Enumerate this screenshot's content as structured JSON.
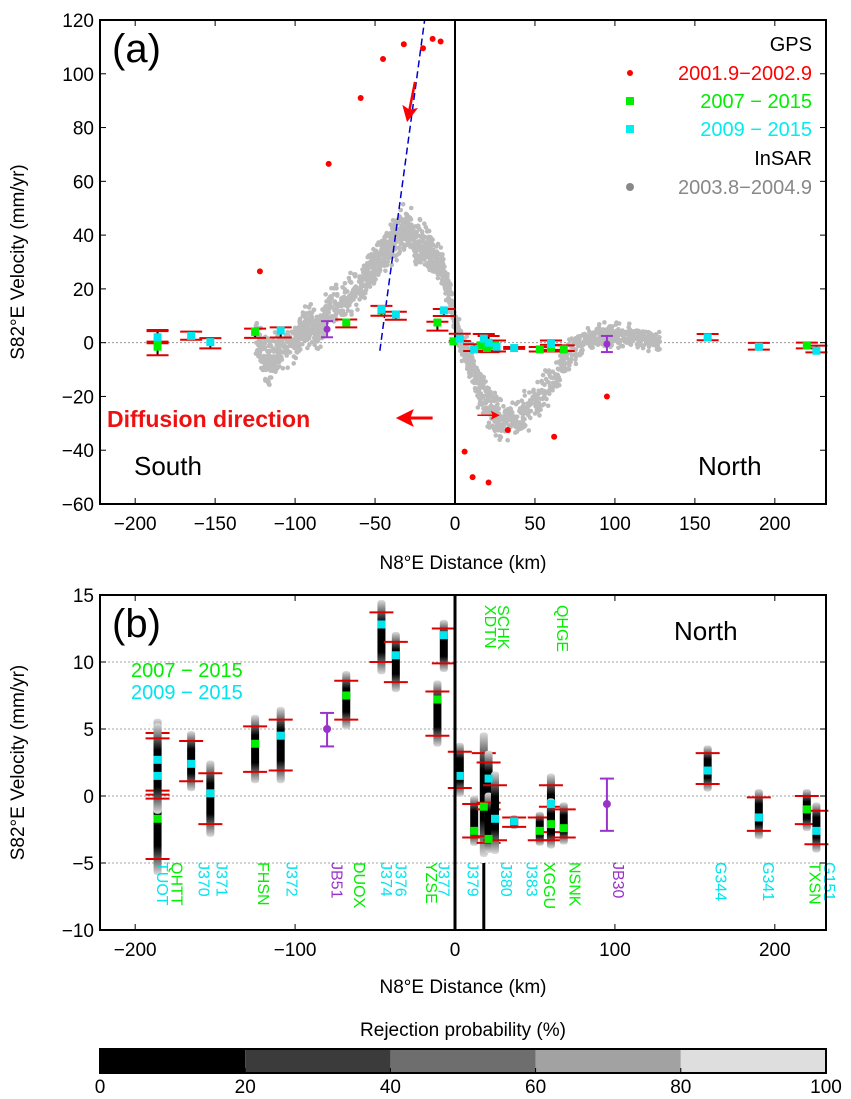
{
  "chart_data": [
    {
      "type": "scatter",
      "panel_label": "(a)",
      "xlabel": "N8°E Distance (km)",
      "ylabel": "S82°E Velocity (mm/yr)",
      "xlim": [
        -222,
        232
      ],
      "ylim": [
        -60,
        120
      ],
      "xticks": [
        -200,
        -150,
        -100,
        -50,
        0,
        50,
        100,
        150,
        200
      ],
      "yticks": [
        -60,
        -40,
        -20,
        0,
        20,
        40,
        60,
        80,
        100,
        120
      ],
      "legend": {
        "placement": "top-right",
        "entries": [
          {
            "text": "GPS",
            "color": "#000000",
            "kind": "header"
          },
          {
            "text": "2001.9−2002.9",
            "color": "#ff0000",
            "kind": "dot"
          },
          {
            "text": "2007 − 2015",
            "color": "#00ee00",
            "kind": "square"
          },
          {
            "text": "2009 − 2015",
            "color": "#00eeee",
            "kind": "square"
          },
          {
            "text": "InSAR",
            "color": "#000000",
            "kind": "header"
          },
          {
            "text": "2003.8−2004.9",
            "color": "#888888",
            "kind": "dot"
          }
        ]
      },
      "annotations": {
        "diffusion": "Diffusion direction",
        "south": "South",
        "north": "North"
      },
      "gps_2001": {
        "color": "#ff0000",
        "x": [
          -122,
          -79,
          -59,
          -45,
          -32,
          -20,
          -14,
          -9,
          6,
          11,
          21,
          33,
          62,
          95
        ],
        "y": [
          26.5,
          66.5,
          91,
          105.5,
          111,
          109.5,
          113,
          112,
          -40.5,
          -50,
          -52,
          -32.5,
          -35,
          -20
        ]
      },
      "gps_2007": {
        "color": "#00ee00",
        "x": [
          -186,
          -186,
          -125,
          -68,
          -46,
          -11,
          -1,
          16,
          20,
          25,
          53,
          60,
          68,
          220
        ],
        "y": [
          0.5,
          -1.5,
          4,
          7.5,
          12,
          7.5,
          0.5,
          -1,
          -2,
          -1,
          -2.5,
          -2,
          -2.5,
          -1
        ]
      },
      "gps_2009": {
        "color": "#00eeee",
        "x": [
          -186,
          -165,
          -153,
          -109,
          -46,
          -37,
          -7,
          3,
          12,
          18,
          21,
          26,
          37,
          60,
          158,
          190,
          226
        ],
        "y": [
          2,
          2.5,
          0.2,
          4.5,
          12.5,
          10.5,
          12,
          1.5,
          -2.5,
          1.5,
          0,
          -1.5,
          -2,
          -0.5,
          2,
          -1.5,
          -3
        ]
      },
      "gps_other": {
        "color": "#9933cc",
        "x": [
          -80,
          95
        ],
        "y": [
          5,
          -0.5
        ]
      },
      "insar": {
        "color": "#bbbbbb",
        "profile": [
          [
            -125,
            3,
            8
          ],
          [
            -120,
            -5,
            12
          ],
          [
            -115,
            -8,
            12
          ],
          [
            -110,
            -2,
            10
          ],
          [
            -100,
            0,
            10
          ],
          [
            -95,
            5,
            10
          ],
          [
            -90,
            8,
            10
          ],
          [
            -85,
            3,
            8
          ],
          [
            -80,
            12,
            10
          ],
          [
            -70,
            15,
            10
          ],
          [
            -60,
            20,
            10
          ],
          [
            -55,
            24,
            10
          ],
          [
            -50,
            28,
            10
          ],
          [
            -45,
            33,
            12
          ],
          [
            -40,
            36,
            12
          ],
          [
            -35,
            40,
            12
          ],
          [
            -30,
            42,
            12
          ],
          [
            -25,
            38,
            12
          ],
          [
            -20,
            36,
            12
          ],
          [
            -15,
            34,
            12
          ],
          [
            -10,
            30,
            10
          ],
          [
            -5,
            22,
            10
          ],
          [
            0,
            8,
            8
          ],
          [
            5,
            -2,
            8
          ],
          [
            10,
            -8,
            10
          ],
          [
            15,
            -15,
            12
          ],
          [
            20,
            -22,
            12
          ],
          [
            25,
            -27,
            10
          ],
          [
            30,
            -30,
            10
          ],
          [
            40,
            -27,
            10
          ],
          [
            50,
            -22,
            10
          ],
          [
            60,
            -15,
            10
          ],
          [
            70,
            -5,
            8
          ],
          [
            80,
            0,
            7
          ],
          [
            90,
            2,
            6
          ],
          [
            100,
            3,
            6
          ],
          [
            110,
            2,
            6
          ],
          [
            120,
            1,
            5
          ],
          [
            128,
            0,
            5
          ]
        ]
      },
      "trend_line": {
        "color": "#0000cc",
        "x": [
          -47,
          -19
        ],
        "y": [
          -3,
          120
        ]
      },
      "arrow_fault": {
        "color": "#ff0000",
        "x": [
          -25,
          -30
        ],
        "y": [
          97,
          82
        ]
      },
      "arrow_diffusion": {
        "color": "#ff0000",
        "x": [
          -14,
          -37
        ],
        "y": [
          -28,
          -28
        ]
      },
      "arrow_small": {
        "color": "#ff0000",
        "x": [
          14,
          28
        ],
        "y": [
          -27,
          -27
        ]
      }
    },
    {
      "type": "scatter",
      "panel_label": "(b)",
      "xlabel": "N8°E Distance (km)",
      "ylabel": "S82°E Velocity (mm/yr)",
      "xlim": [
        -222,
        232
      ],
      "ylim": [
        -10,
        15
      ],
      "xticks": [
        -200,
        -100,
        0,
        100,
        200
      ],
      "yticks": [
        -10,
        -5,
        0,
        5,
        10,
        15
      ],
      "legend": {
        "placement": "top-left",
        "entries": [
          {
            "text": "2007 − 2015",
            "color": "#00ee00"
          },
          {
            "text": "2009 − 2015",
            "color": "#00eeee"
          }
        ]
      },
      "annotations": {
        "north": "North"
      },
      "stations": [
        {
          "name": "TUOT",
          "x": -186,
          "v": 2.7,
          "lo": 0.4,
          "hi": 4.7,
          "c": "c"
        },
        {
          "name": "QHTT",
          "x": -186,
          "v": -1.7,
          "lo": -4.7,
          "hi": 0.1,
          "c": "g"
        },
        {
          "name": "J370",
          "x": -186,
          "v": 1.5,
          "lo": -0.2,
          "hi": 4.3,
          "c": "c"
        },
        {
          "name": "J371",
          "x": -165,
          "v": 2.4,
          "lo": 1.1,
          "hi": 4.1,
          "c": "c"
        },
        {
          "name": "J371",
          "x": -153,
          "v": 0.2,
          "lo": -2.1,
          "hi": 1.7,
          "c": "c"
        },
        {
          "name": "FHSN",
          "x": -125,
          "v": 3.9,
          "lo": 1.8,
          "hi": 5.2,
          "c": "g"
        },
        {
          "name": "J372",
          "x": -109,
          "v": 4.5,
          "lo": 1.9,
          "hi": 5.7,
          "c": "c"
        },
        {
          "name": "JB51",
          "x": -80,
          "v": 5.0,
          "lo": 3.7,
          "hi": 6.2,
          "c": "p"
        },
        {
          "name": "DUOX",
          "x": -68,
          "v": 7.5,
          "lo": 5.7,
          "hi": 8.6,
          "c": "g"
        },
        {
          "name": "J374",
          "x": -46,
          "v": 12.8,
          "lo": 10.0,
          "hi": 13.7,
          "c": "c"
        },
        {
          "name": "J376",
          "x": -37,
          "v": 10.5,
          "lo": 8.5,
          "hi": 11.5,
          "c": "c"
        },
        {
          "name": "YZSE",
          "x": -11,
          "v": 7.2,
          "lo": 4.5,
          "hi": 7.8,
          "c": "g"
        },
        {
          "name": "J377",
          "x": -7,
          "v": 12.0,
          "lo": 9.9,
          "hi": 12.5,
          "c": "c"
        },
        {
          "name": "J379",
          "x": 3,
          "v": 1.5,
          "lo": 0.6,
          "hi": 3.3,
          "c": "c"
        },
        {
          "name": "XDTN",
          "x": 12,
          "v": -2.6,
          "lo": -3.1,
          "hi": -0.6,
          "c": "g"
        },
        {
          "name": "SCHK",
          "x": 18,
          "v": -0.8,
          "lo": -3.0,
          "hi": 3.2,
          "c": "g"
        },
        {
          "name": "J380",
          "x": 21,
          "v": 1.3,
          "lo": -1.0,
          "hi": 2.5,
          "c": "c"
        },
        {
          "name": "J380",
          "x": 21,
          "v": -3.2,
          "lo": -3.5,
          "hi": -0.5,
          "c": "g"
        },
        {
          "name": "J380",
          "x": 25,
          "v": -1.7,
          "lo": -3.3,
          "hi": 0.8,
          "c": "c"
        },
        {
          "name": "J383",
          "x": 37,
          "v": -1.9,
          "lo": -2.3,
          "hi": -1.6,
          "c": "c"
        },
        {
          "name": "XGGU",
          "x": 53,
          "v": -2.6,
          "lo": -3.3,
          "hi": -1.6,
          "c": "g"
        },
        {
          "name": "QHGE",
          "x": 60,
          "v": -0.6,
          "lo": -2.7,
          "hi": 0.8,
          "c": "c"
        },
        {
          "name": "QHGE",
          "x": 60,
          "v": -2.1,
          "lo": -3.3,
          "hi": -0.8,
          "c": "g"
        },
        {
          "name": "NSNK",
          "x": 68,
          "v": -2.4,
          "lo": -3.1,
          "hi": -1.0,
          "c": "g"
        },
        {
          "name": "JB30",
          "x": 95,
          "v": -0.6,
          "lo": -2.6,
          "hi": 1.3,
          "c": "p"
        },
        {
          "name": "G344",
          "x": 158,
          "v": 1.9,
          "lo": 0.9,
          "hi": 3.2,
          "c": "c"
        },
        {
          "name": "G341",
          "x": 190,
          "v": -1.6,
          "lo": -2.6,
          "hi": -0.1,
          "c": "c"
        },
        {
          "name": "TXSN",
          "x": 220,
          "v": -1.0,
          "lo": -2.1,
          "hi": 0.0,
          "c": "g"
        },
        {
          "name": "G151",
          "x": 226,
          "v": -2.6,
          "lo": -3.6,
          "hi": -1.1,
          "c": "c"
        }
      ],
      "bottom_labels": [
        {
          "text": "TUOT",
          "x": -190,
          "c": "c"
        },
        {
          "text": "QHTT",
          "x": -181,
          "c": "g"
        },
        {
          "text": "J370",
          "x": -164,
          "c": "c"
        },
        {
          "text": "J371",
          "x": -153,
          "c": "c"
        },
        {
          "text": "FHSN",
          "x": -127,
          "c": "g"
        },
        {
          "text": "J372",
          "x": -109,
          "c": "c"
        },
        {
          "text": "JB51",
          "x": -81,
          "c": "p"
        },
        {
          "text": "DUOX",
          "x": -67,
          "c": "g"
        },
        {
          "text": "J374",
          "x": -50,
          "c": "c"
        },
        {
          "text": "J376",
          "x": -41,
          "c": "c"
        },
        {
          "text": "YZSE",
          "x": -22,
          "c": "g"
        },
        {
          "text": "J377",
          "x": -14,
          "c": "c"
        },
        {
          "text": "J379",
          "x": 4,
          "c": "c"
        },
        {
          "text": "J380",
          "x": 25,
          "c": "c"
        },
        {
          "text": "J383",
          "x": 41,
          "c": "c"
        },
        {
          "text": "XGGU",
          "x": 52,
          "c": "g"
        },
        {
          "text": "NSNK",
          "x": 68,
          "c": "g"
        },
        {
          "text": "JB30",
          "x": 95,
          "c": "p"
        },
        {
          "text": "G344",
          "x": 159,
          "c": "c"
        },
        {
          "text": "G341",
          "x": 189,
          "c": "c"
        },
        {
          "text": "TXSN",
          "x": 218,
          "c": "g"
        },
        {
          "text": "G151",
          "x": 227,
          "c": "c"
        }
      ],
      "top_labels": [
        {
          "text": "SCHK",
          "x": 23,
          "c": "g"
        },
        {
          "text": "XDTN",
          "x": 15,
          "c": "g"
        },
        {
          "text": "QHGE",
          "x": 60,
          "c": "g"
        }
      ]
    }
  ],
  "colorbar": {
    "title": "Rejection probability (%)",
    "ticks": [
      "0",
      "20",
      "40",
      "60",
      "80",
      "100"
    ],
    "colors": [
      "#000000",
      "#3b3b3b",
      "#6e6e6e",
      "#a2a2a2",
      "#dedede"
    ]
  },
  "colors": {
    "red": "#ee1111",
    "green": "#00ee00",
    "cyan": "#00e5ee",
    "purple": "#9933cc",
    "grid": "#888888"
  }
}
